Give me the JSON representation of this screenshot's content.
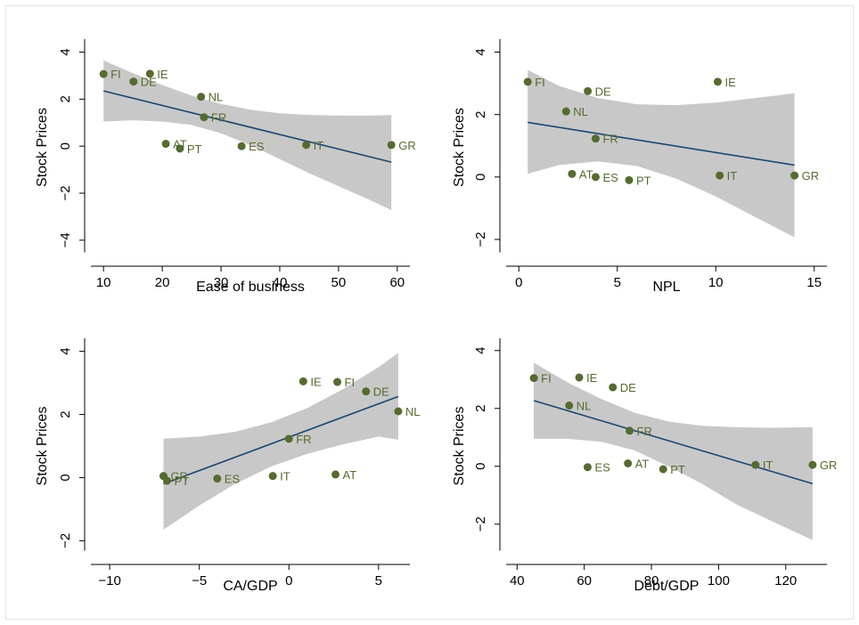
{
  "colors": {
    "point": "#556b2f",
    "fit_line": "#1a476f",
    "ci_band": "#c8c8c8",
    "axis": "#000000"
  },
  "chart_data": [
    {
      "type": "scatter",
      "xlabel": "Ease of business",
      "ylabel": "Stock Prices",
      "xlim": [
        8,
        62
      ],
      "ylim": [
        -4.5,
        4.4
      ],
      "xticks": [
        10,
        20,
        30,
        40,
        50,
        60
      ],
      "yticks": [
        -4,
        -2,
        0,
        2,
        4
      ],
      "points": [
        {
          "label": "FI",
          "x": 10,
          "y": 3.07
        },
        {
          "label": "DE",
          "x": 15.1,
          "y": 2.75
        },
        {
          "label": "IE",
          "x": 17.9,
          "y": 3.08
        },
        {
          "label": "NL",
          "x": 26.6,
          "y": 2.1
        },
        {
          "label": "FR",
          "x": 27.1,
          "y": 1.23
        },
        {
          "label": "AT",
          "x": 20.6,
          "y": 0.1
        },
        {
          "label": "PT",
          "x": 23,
          "y": -0.1
        },
        {
          "label": "ES",
          "x": 33.5,
          "y": 0.0
        },
        {
          "label": "IT",
          "x": 44.5,
          "y": 0.05
        },
        {
          "label": "GR",
          "x": 59,
          "y": 0.05
        }
      ],
      "fit": {
        "x": [
          10,
          59
        ],
        "y": [
          2.35,
          -0.68
        ]
      },
      "ci_upper": [
        [
          10,
          3.65
        ],
        [
          15,
          3.1
        ],
        [
          20,
          2.6
        ],
        [
          25,
          2.15
        ],
        [
          30,
          1.8
        ],
        [
          35,
          1.55
        ],
        [
          40,
          1.4
        ],
        [
          45,
          1.33
        ],
        [
          50,
          1.3
        ],
        [
          55,
          1.3
        ],
        [
          59,
          1.32
        ]
      ],
      "ci_lower": [
        [
          10,
          1.05
        ],
        [
          15,
          1.1
        ],
        [
          20,
          1.05
        ],
        [
          25,
          0.9
        ],
        [
          30,
          0.55
        ],
        [
          35,
          0.05
        ],
        [
          40,
          -0.55
        ],
        [
          45,
          -1.15
        ],
        [
          50,
          -1.7
        ],
        [
          55,
          -2.25
        ],
        [
          59,
          -2.72
        ]
      ]
    },
    {
      "type": "scatter",
      "xlabel": "NPL",
      "ylabel": "Stock Prices",
      "xlim": [
        -0.6,
        15.6
      ],
      "ylim": [
        -2.4,
        4.3
      ],
      "xticks": [
        0,
        5,
        10,
        15
      ],
      "yticks": [
        -2,
        0,
        2,
        4
      ],
      "points": [
        {
          "label": "FI",
          "x": 0.45,
          "y": 3.05
        },
        {
          "label": "DE",
          "x": 3.5,
          "y": 2.75
        },
        {
          "label": "IE",
          "x": 10.1,
          "y": 3.05
        },
        {
          "label": "NL",
          "x": 2.4,
          "y": 2.1
        },
        {
          "label": "FR",
          "x": 3.9,
          "y": 1.23
        },
        {
          "label": "AT",
          "x": 2.7,
          "y": 0.1
        },
        {
          "label": "ES",
          "x": 3.9,
          "y": 0.0
        },
        {
          "label": "PT",
          "x": 5.6,
          "y": -0.1
        },
        {
          "label": "IT",
          "x": 10.2,
          "y": 0.05
        },
        {
          "label": "GR",
          "x": 14.0,
          "y": 0.05
        }
      ],
      "fit": {
        "x": [
          0.45,
          14.0
        ],
        "y": [
          1.75,
          0.38
        ]
      },
      "ci_upper": [
        [
          0.45,
          3.43
        ],
        [
          2,
          2.93
        ],
        [
          4,
          2.53
        ],
        [
          6,
          2.33
        ],
        [
          8,
          2.3
        ],
        [
          10,
          2.38
        ],
        [
          12,
          2.53
        ],
        [
          14,
          2.68
        ]
      ],
      "ci_lower": [
        [
          0.45,
          0.1
        ],
        [
          2,
          0.38
        ],
        [
          4,
          0.5
        ],
        [
          6,
          0.35
        ],
        [
          8,
          -0.05
        ],
        [
          10,
          -0.62
        ],
        [
          12,
          -1.28
        ],
        [
          14,
          -1.93
        ]
      ]
    },
    {
      "type": "scatter",
      "xlabel": "CA/GDP",
      "ylabel": "Stock Prices",
      "xlim": [
        -11,
        6.7
      ],
      "ylim": [
        -2.3,
        4.3
      ],
      "xticks": [
        -10,
        -5,
        0,
        5
      ],
      "yticks": [
        -2,
        0,
        2,
        4
      ],
      "points": [
        {
          "label": "IE",
          "x": 0.8,
          "y": 3.05
        },
        {
          "label": "FI",
          "x": 2.7,
          "y": 3.03
        },
        {
          "label": "DE",
          "x": 4.3,
          "y": 2.73
        },
        {
          "label": "NL",
          "x": 6.1,
          "y": 2.1
        },
        {
          "label": "FR",
          "x": 0.0,
          "y": 1.23
        },
        {
          "label": "GR",
          "x": -7.0,
          "y": 0.05
        },
        {
          "label": "PT",
          "x": -6.8,
          "y": -0.1
        },
        {
          "label": "ES",
          "x": -4.0,
          "y": -0.03
        },
        {
          "label": "IT",
          "x": -0.9,
          "y": 0.05
        },
        {
          "label": "AT",
          "x": 2.6,
          "y": 0.1
        }
      ],
      "fit": {
        "x": [
          -7.0,
          6.1
        ],
        "y": [
          -0.2,
          2.57
        ]
      },
      "ci_upper": [
        [
          -7,
          1.23
        ],
        [
          -5,
          1.3
        ],
        [
          -3,
          1.45
        ],
        [
          -1,
          1.75
        ],
        [
          1,
          2.2
        ],
        [
          3,
          2.8
        ],
        [
          5,
          3.5
        ],
        [
          6.1,
          3.95
        ]
      ],
      "ci_lower": [
        [
          -7,
          -1.65
        ],
        [
          -5,
          -0.88
        ],
        [
          -3,
          -0.2
        ],
        [
          -1,
          0.35
        ],
        [
          1,
          0.75
        ],
        [
          3,
          1.05
        ],
        [
          5,
          1.3
        ],
        [
          6.1,
          1.2
        ]
      ]
    },
    {
      "type": "scatter",
      "xlabel": "Debt/GDP",
      "ylabel": "Stock Prices",
      "xlim": [
        37,
        132
      ],
      "ylim": [
        -2.9,
        4.3
      ],
      "xticks": [
        40,
        60,
        80,
        100,
        120
      ],
      "yticks": [
        -2,
        0,
        2,
        4
      ],
      "points": [
        {
          "label": "FI",
          "x": 45,
          "y": 3.05
        },
        {
          "label": "IE",
          "x": 58.5,
          "y": 3.07
        },
        {
          "label": "DE",
          "x": 68.5,
          "y": 2.73
        },
        {
          "label": "NL",
          "x": 55.5,
          "y": 2.1
        },
        {
          "label": "FR",
          "x": 73.5,
          "y": 1.23
        },
        {
          "label": "ES",
          "x": 61,
          "y": -0.03
        },
        {
          "label": "AT",
          "x": 73.0,
          "y": 0.1
        },
        {
          "label": "PT",
          "x": 83.5,
          "y": -0.1
        },
        {
          "label": "IT",
          "x": 111,
          "y": 0.05
        },
        {
          "label": "GR",
          "x": 128,
          "y": 0.05
        }
      ],
      "fit": {
        "x": [
          45,
          128
        ],
        "y": [
          2.27,
          -0.6
        ]
      },
      "ci_upper": [
        [
          45,
          3.58
        ],
        [
          55,
          2.9
        ],
        [
          65,
          2.33
        ],
        [
          75,
          1.85
        ],
        [
          85,
          1.55
        ],
        [
          95,
          1.4
        ],
        [
          105,
          1.35
        ],
        [
          115,
          1.33
        ],
        [
          128,
          1.35
        ]
      ],
      "ci_lower": [
        [
          45,
          0.95
        ],
        [
          55,
          0.95
        ],
        [
          65,
          0.85
        ],
        [
          75,
          0.55
        ],
        [
          85,
          0.0
        ],
        [
          95,
          -0.6
        ],
        [
          105,
          -1.3
        ],
        [
          115,
          -1.85
        ],
        [
          128,
          -2.55
        ]
      ]
    }
  ]
}
